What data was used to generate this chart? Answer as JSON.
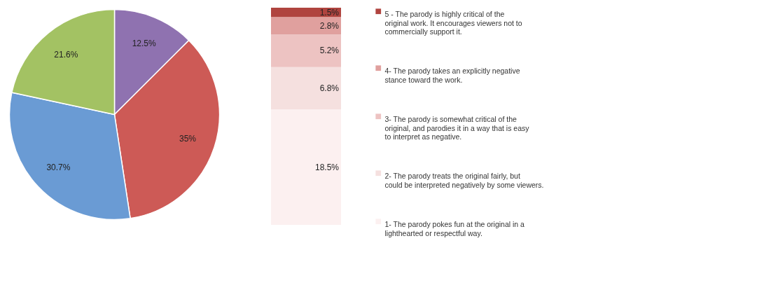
{
  "chart_data": [
    {
      "type": "pie",
      "categories": [
        null,
        null,
        null,
        null
      ],
      "values": [
        12.5,
        35,
        30.7,
        21.6
      ],
      "colors": [
        "#8f72b0",
        "#cd5a56",
        "#6a9bd4",
        "#a3c263"
      ],
      "value_labels": [
        "12.5%",
        "35%",
        "30.7%",
        "21.6%"
      ],
      "legend": false
    },
    {
      "type": "bar",
      "stacked": true,
      "categories": [
        null
      ],
      "tick_labels": false,
      "legend": "right",
      "series": [
        {
          "name": "1- The parody pokes fun at the original in a lighthearted or respectful way.",
          "color": "#fcf0f0",
          "values": [
            18.5
          ],
          "value_labels": [
            "18.5%"
          ]
        },
        {
          "name": "2- The parody treats the original fairly, but could be interpreted negatively by some viewers.",
          "color": "#f5e0df",
          "values": [
            6.8
          ],
          "value_labels": [
            "6.8%"
          ]
        },
        {
          "name": "3- The parody is somewhat critical of the original, and parodies it in a way that is easy to interpret as negative.",
          "color": "#edc3c2",
          "values": [
            5.2
          ],
          "value_labels": [
            "5.2%"
          ]
        },
        {
          "name": "4- The parody takes an explicitly negative stance toward the work.",
          "color": "#e0a09e",
          "values": [
            2.8
          ],
          "value_labels": [
            "2.8%"
          ]
        },
        {
          "name": "5 - The parody is highly critical of the original work. It encourages viewers not to commercially support it.",
          "color": "#b0443f",
          "values": [
            1.5
          ],
          "value_labels": [
            "1.5%"
          ]
        }
      ]
    }
  ]
}
